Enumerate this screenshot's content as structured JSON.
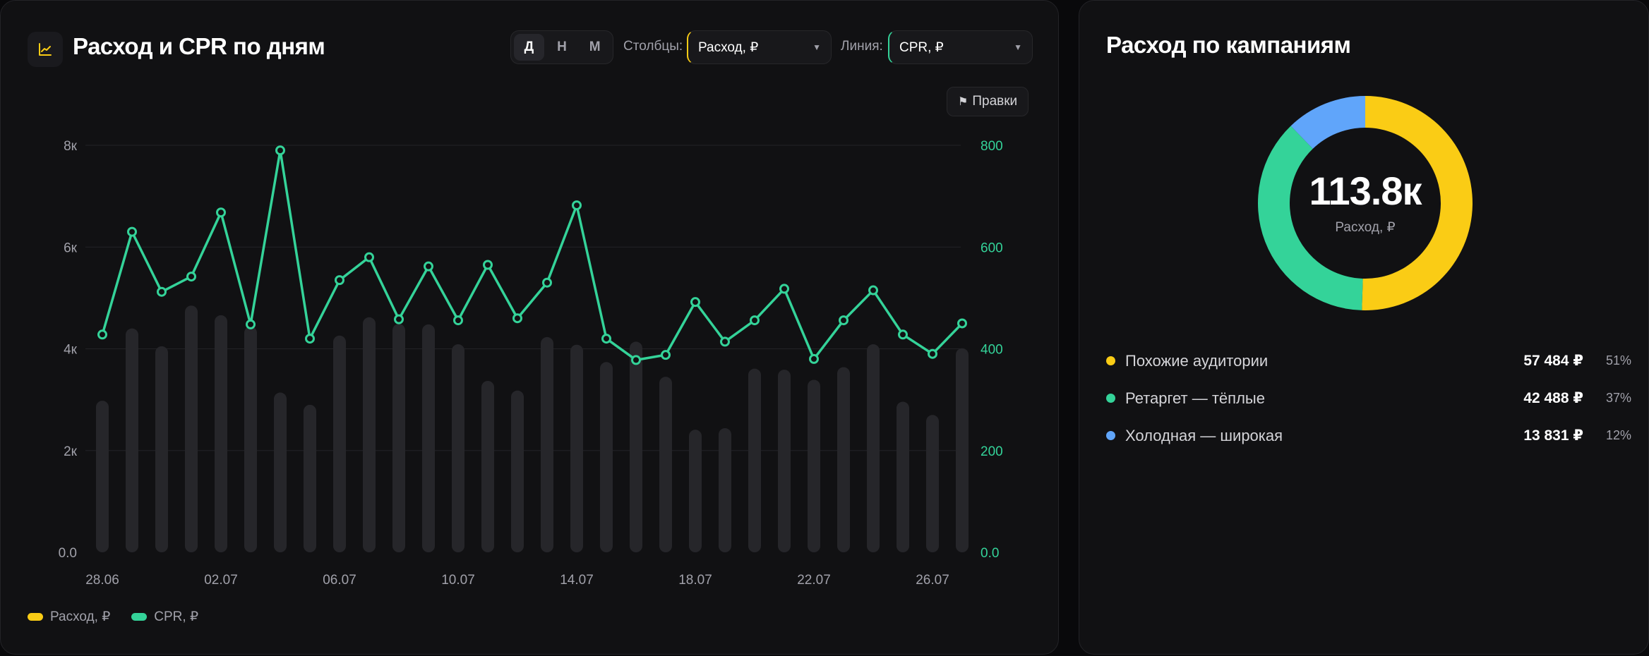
{
  "left_card": {
    "title": "Расход и CPR по дням",
    "period_toggle": [
      "Д",
      "Н",
      "М"
    ],
    "period_active": 0,
    "bars_label": "Столбцы:",
    "bars_value": "Расход, ₽",
    "line_label": "Линия:",
    "line_value": "CPR, ₽",
    "edits_label": "Правки",
    "legend": [
      {
        "label": "Расход, ₽",
        "color": "#facc15"
      },
      {
        "label": "CPR, ₽",
        "color": "#34d399"
      }
    ]
  },
  "right_card": {
    "title": "Расход по кампаниям",
    "center_value": "113.8к",
    "center_label": "Расход, ₽",
    "campaigns": [
      {
        "name": "Похожие аудитории",
        "amount": "57 484 ₽",
        "pct": "51%",
        "share": 50.5,
        "color": "#facc15"
      },
      {
        "name": "Ретаргет — тёплые",
        "amount": "42 488 ₽",
        "pct": "37%",
        "share": 37.3,
        "color": "#34d399"
      },
      {
        "name": "Холодная — широкая",
        "amount": "13 831 ₽",
        "pct": "12%",
        "share": 12.2,
        "color": "#60a5fa"
      }
    ]
  },
  "colors": {
    "bar": "#26262a",
    "line": "#34d399",
    "grid": "#232327",
    "axis_text": "#a1a1aa",
    "right_axis_text": "#34d399"
  },
  "chart_data": {
    "type": "bar+line",
    "categories": [
      "28.06",
      "29.06",
      "30.06",
      "01.07",
      "02.07",
      "03.07",
      "04.07",
      "05.07",
      "06.07",
      "07.07",
      "08.07",
      "09.07",
      "10.07",
      "11.07",
      "12.07",
      "13.07",
      "14.07",
      "15.07",
      "16.07",
      "17.07",
      "18.07",
      "19.07",
      "20.07",
      "21.07",
      "22.07",
      "23.07",
      "24.07",
      "25.07",
      "26.07",
      "27.07"
    ],
    "x_tick_labels": [
      "28.06",
      "02.07",
      "06.07",
      "10.07",
      "14.07",
      "18.07",
      "22.07",
      "26.07"
    ],
    "x_tick_every": 4,
    "series": [
      {
        "name": "Расход, ₽",
        "axis": "left",
        "kind": "bar",
        "values": [
          2980,
          4400,
          4050,
          4850,
          4660,
          4440,
          3140,
          2900,
          4260,
          4620,
          4490,
          4480,
          4090,
          3370,
          3180,
          4230,
          4080,
          3740,
          4140,
          3450,
          2410,
          2440,
          3610,
          3590,
          3390,
          3640,
          4090,
          2960,
          2700,
          4010
        ]
      },
      {
        "name": "CPR, ₽",
        "axis": "right",
        "kind": "line",
        "values": [
          428,
          630,
          512,
          542,
          668,
          448,
          790,
          420,
          535,
          580,
          458,
          562,
          456,
          565,
          460,
          530,
          682,
          420,
          378,
          388,
          492,
          414,
          456,
          518,
          380,
          456,
          515,
          428,
          390,
          450
        ]
      }
    ],
    "left_axis": {
      "ticks": [
        0,
        2000,
        4000,
        6000,
        8000
      ],
      "tick_labels": [
        "0.0",
        "2к",
        "4к",
        "6к",
        "8к"
      ],
      "ylim": [
        0,
        8000
      ]
    },
    "right_axis": {
      "ticks": [
        0,
        200,
        400,
        600,
        800
      ],
      "tick_labels": [
        "0.0",
        "200",
        "400",
        "600",
        "800"
      ],
      "ylim": [
        0,
        800
      ]
    },
    "grid": true,
    "legend_position": "bottom-left"
  }
}
